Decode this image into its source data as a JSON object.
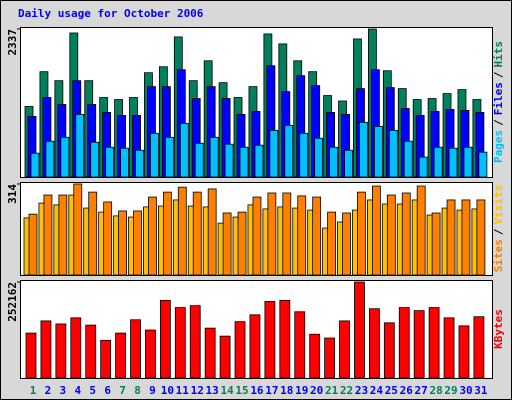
{
  "chart_data": [
    {
      "type": "bar",
      "title": "Daily usage for October 2006",
      "title_color": "#0000ff",
      "ylim": [
        0,
        2337
      ],
      "yticks": [
        2337
      ],
      "legend_separator": "/",
      "series": [
        {
          "name": "Pages",
          "color": "#00c0ff",
          "values": [
            376,
            565,
            627,
            988,
            549,
            470,
            455,
            423,
            690,
            627,
            847,
            533,
            627,
            518,
            470,
            502,
            737,
            816,
            690,
            612,
            470,
            423,
            863,
            800,
            737,
            565,
            314,
            470,
            455,
            470,
            392
          ]
        },
        {
          "name": "Files",
          "color": "#0000ff",
          "values": [
            957,
            1255,
            1145,
            1521,
            1145,
            1020,
            972,
            972,
            1427,
            1427,
            1694,
            1239,
            1427,
            1239,
            988,
            1035,
            1757,
            1349,
            1600,
            1443,
            1020,
            988,
            1396,
            1694,
            1412,
            1082,
            972,
            1035,
            1067,
            1051,
            1020
          ]
        },
        {
          "name": "Hits",
          "color": "#00805c",
          "values": [
            1114,
            1663,
            1521,
            2274,
            1521,
            1255,
            1223,
            1255,
            1647,
            1741,
            2212,
            1521,
            1835,
            1490,
            1255,
            1427,
            2259,
            2102,
            1835,
            1663,
            1286,
            1200,
            2180,
            2337,
            1678,
            1396,
            1223,
            1239,
            1317,
            1380,
            1223
          ]
        }
      ]
    },
    {
      "type": "bar",
      "ylim": [
        0,
        314
      ],
      "yticks": [
        314
      ],
      "legend_separator": "/",
      "series": [
        {
          "name": "Sites",
          "color": "#ff8000",
          "values": [
            210,
            276,
            276,
            314,
            286,
            252,
            221,
            221,
            269,
            286,
            303,
            286,
            297,
            214,
            217,
            269,
            283,
            283,
            273,
            269,
            217,
            214,
            286,
            307,
            276,
            283,
            307,
            214,
            259,
            259,
            259
          ]
        },
        {
          "name": "Visits",
          "color": "#ffc000",
          "values": [
            197,
            248,
            242,
            276,
            231,
            217,
            204,
            200,
            235,
            238,
            259,
            238,
            235,
            179,
            200,
            242,
            228,
            235,
            231,
            224,
            162,
            183,
            224,
            259,
            245,
            245,
            259,
            207,
            231,
            224,
            228
          ]
        }
      ]
    },
    {
      "type": "bar",
      "ylim": [
        0,
        252162
      ],
      "yticks": [
        252162
      ],
      "series": [
        {
          "name": "KBytes",
          "color": "#ff0000",
          "values": [
            118000,
            150000,
            142000,
            158000,
            139000,
            99000,
            118000,
            153000,
            126000,
            204000,
            185000,
            190000,
            131000,
            110000,
            148000,
            166000,
            201000,
            204000,
            174000,
            115000,
            105000,
            150000,
            252162,
            182000,
            145000,
            185000,
            177000,
            185000,
            158000,
            137000,
            161000
          ]
        }
      ],
      "categories": [
        "1",
        "2",
        "3",
        "4",
        "5",
        "6",
        "7",
        "8",
        "9",
        "10",
        "11",
        "12",
        "13",
        "14",
        "15",
        "16",
        "17",
        "18",
        "19",
        "20",
        "21",
        "22",
        "23",
        "24",
        "25",
        "26",
        "27",
        "28",
        "29",
        "30",
        "31"
      ],
      "category_colors": [
        "#00805c",
        "#0000ff",
        "#0000ff",
        "#0000ff",
        "#0000ff",
        "#0000ff",
        "#00805c",
        "#00805c",
        "#0000ff",
        "#0000ff",
        "#0000ff",
        "#0000ff",
        "#0000ff",
        "#00805c",
        "#00805c",
        "#0000ff",
        "#0000ff",
        "#0000ff",
        "#0000ff",
        "#0000ff",
        "#00805c",
        "#00805c",
        "#0000ff",
        "#0000ff",
        "#0000ff",
        "#0000ff",
        "#0000ff",
        "#00805c",
        "#00805c",
        "#0000ff",
        "#0000ff"
      ]
    }
  ]
}
